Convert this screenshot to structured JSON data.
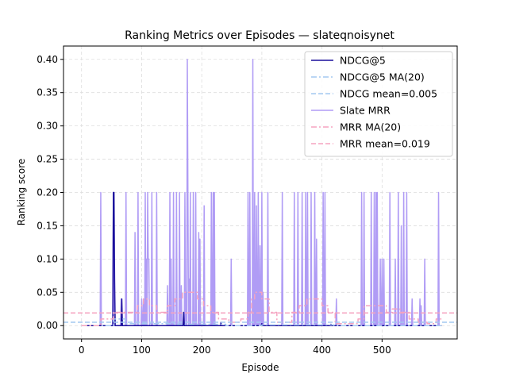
{
  "chart_data": {
    "type": "line",
    "title": "Ranking Metrics over Episodes — slateqnoisynet",
    "xlabel": "Episode",
    "ylabel": "Ranking score",
    "xlim": [
      -30,
      625
    ],
    "ylim": [
      -0.02,
      0.42
    ],
    "x_ticks": [
      0,
      100,
      200,
      300,
      400,
      500
    ],
    "y_ticks": [
      0.0,
      0.05,
      0.1,
      0.15,
      0.2,
      0.25,
      0.3,
      0.35,
      0.4
    ],
    "grid": true,
    "legend_position": "top-right",
    "n_episodes": 600,
    "series": [
      {
        "name": "NDCG@5",
        "color": "#1a0f9c",
        "style": "solid",
        "spikes": [
          [
            53,
            0.2
          ],
          [
            54,
            0.2
          ],
          [
            55,
            0.07
          ],
          [
            67,
            0.04
          ],
          [
            170,
            0.02
          ],
          [
            232,
            0.005
          ],
          [
            300,
            0.003
          ],
          [
            415,
            0.002
          ]
        ]
      },
      {
        "name": "NDCG@5 MA(20)",
        "color": "#a4c8f0",
        "style": "dashdot",
        "steps": [
          [
            0,
            0.0
          ],
          [
            53,
            0.01
          ],
          [
            73,
            0.003
          ],
          [
            160,
            0.002
          ],
          [
            240,
            0.0
          ],
          [
            300,
            0.001
          ],
          [
            420,
            0.0
          ]
        ]
      },
      {
        "name": "NDCG mean=0.005",
        "color": "#a4c8f0",
        "style": "dashed",
        "value": 0.005
      },
      {
        "name": "Slate MRR",
        "color": "#b09cf5",
        "style": "solid",
        "spikes": [
          [
            32,
            0.2
          ],
          [
            53,
            0.2
          ],
          [
            66,
            0.04
          ],
          [
            74,
            0.2
          ],
          [
            89,
            0.14
          ],
          [
            94,
            0.2
          ],
          [
            100,
            0.04
          ],
          [
            103,
            0.04
          ],
          [
            106,
            0.2
          ],
          [
            108,
            0.1
          ],
          [
            110,
            0.2
          ],
          [
            111,
            0.1
          ],
          [
            112,
            0.1
          ],
          [
            117,
            0.2
          ],
          [
            125,
            0.2
          ],
          [
            143,
            0.06
          ],
          [
            147,
            0.2
          ],
          [
            149,
            0.1
          ],
          [
            153,
            0.2
          ],
          [
            158,
            0.2
          ],
          [
            163,
            0.2
          ],
          [
            166,
            0.06
          ],
          [
            172,
            0.2
          ],
          [
            174,
            0.05
          ],
          [
            176,
            0.4
          ],
          [
            177,
            0.2
          ],
          [
            179,
            0.07
          ],
          [
            181,
            0.2
          ],
          [
            186,
            0.2
          ],
          [
            190,
            0.2
          ],
          [
            195,
            0.14
          ],
          [
            197,
            0.13
          ],
          [
            204,
            0.18
          ],
          [
            216,
            0.2
          ],
          [
            219,
            0.2
          ],
          [
            221,
            0.2
          ],
          [
            249,
            0.1
          ],
          [
            277,
            0.2
          ],
          [
            280,
            0.2
          ],
          [
            285,
            0.4
          ],
          [
            288,
            0.2
          ],
          [
            291,
            0.18
          ],
          [
            294,
            0.2
          ],
          [
            297,
            0.12
          ],
          [
            300,
            0.2
          ],
          [
            302,
            0.05
          ],
          [
            310,
            0.2
          ],
          [
            334,
            0.2
          ],
          [
            354,
            0.2
          ],
          [
            360,
            0.2
          ],
          [
            367,
            0.2
          ],
          [
            373,
            0.2
          ],
          [
            376,
            0.2
          ],
          [
            382,
            0.2
          ],
          [
            388,
            0.2
          ],
          [
            391,
            0.13
          ],
          [
            402,
            0.2
          ],
          [
            405,
            0.2
          ],
          [
            424,
            0.04
          ],
          [
            466,
            0.2
          ],
          [
            470,
            0.2
          ],
          [
            482,
            0.2
          ],
          [
            487,
            0.2
          ],
          [
            490,
            0.2
          ],
          [
            492,
            0.2
          ],
          [
            497,
            0.1
          ],
          [
            500,
            0.1
          ],
          [
            503,
            0.1
          ],
          [
            513,
            0.2
          ],
          [
            522,
            0.1
          ],
          [
            527,
            0.2
          ],
          [
            532,
            0.15
          ],
          [
            536,
            0.2
          ],
          [
            541,
            0.2
          ],
          [
            550,
            0.04
          ],
          [
            563,
            0.04
          ],
          [
            565,
            0.03
          ],
          [
            571,
            0.1
          ],
          [
            594,
            0.2
          ]
        ]
      },
      {
        "name": "MRR MA(20)",
        "color": "#f5a3c0",
        "style": "dashdot",
        "steps": [
          [
            0,
            0.0
          ],
          [
            32,
            0.01
          ],
          [
            53,
            0.02
          ],
          [
            73,
            0.02
          ],
          [
            93,
            0.03
          ],
          [
            103,
            0.04
          ],
          [
            113,
            0.03
          ],
          [
            125,
            0.02
          ],
          [
            143,
            0.03
          ],
          [
            155,
            0.04
          ],
          [
            168,
            0.05
          ],
          [
            178,
            0.05
          ],
          [
            193,
            0.04
          ],
          [
            203,
            0.03
          ],
          [
            215,
            0.02
          ],
          [
            228,
            0.01
          ],
          [
            245,
            0.005
          ],
          [
            265,
            0.01
          ],
          [
            277,
            0.02
          ],
          [
            283,
            0.04
          ],
          [
            288,
            0.05
          ],
          [
            300,
            0.04
          ],
          [
            312,
            0.02
          ],
          [
            325,
            0.005
          ],
          [
            350,
            0.02
          ],
          [
            362,
            0.03
          ],
          [
            375,
            0.04
          ],
          [
            388,
            0.04
          ],
          [
            400,
            0.03
          ],
          [
            410,
            0.02
          ],
          [
            422,
            0.003
          ],
          [
            460,
            0.01
          ],
          [
            470,
            0.03
          ],
          [
            482,
            0.03
          ],
          [
            495,
            0.03
          ],
          [
            507,
            0.02
          ],
          [
            517,
            0.025
          ],
          [
            530,
            0.02
          ],
          [
            545,
            0.01
          ],
          [
            560,
            0.005
          ],
          [
            575,
            0.003
          ],
          [
            590,
            0.01
          ]
        ]
      },
      {
        "name": "MRR mean=0.019",
        "color": "#f5a3c0",
        "style": "dashed",
        "value": 0.019
      }
    ]
  }
}
